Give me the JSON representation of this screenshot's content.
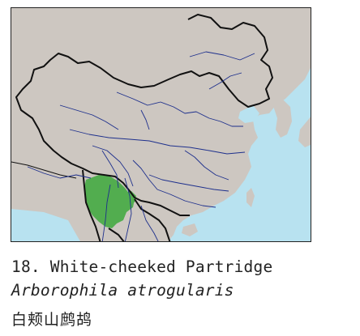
{
  "species": {
    "number_label": "18. White-cheeked Partridge",
    "scientific_name": "Arborophila atrogularis",
    "chinese_name": "白颊山鹧鸪"
  },
  "map": {
    "colors": {
      "sea": "#b8e2f0",
      "land": "#cdc7c1",
      "border": "#111111",
      "river": "#1d2f8c",
      "range": "#52ad4f"
    },
    "features": [
      "ocean",
      "land",
      "national-border",
      "rivers",
      "distribution-range"
    ]
  }
}
